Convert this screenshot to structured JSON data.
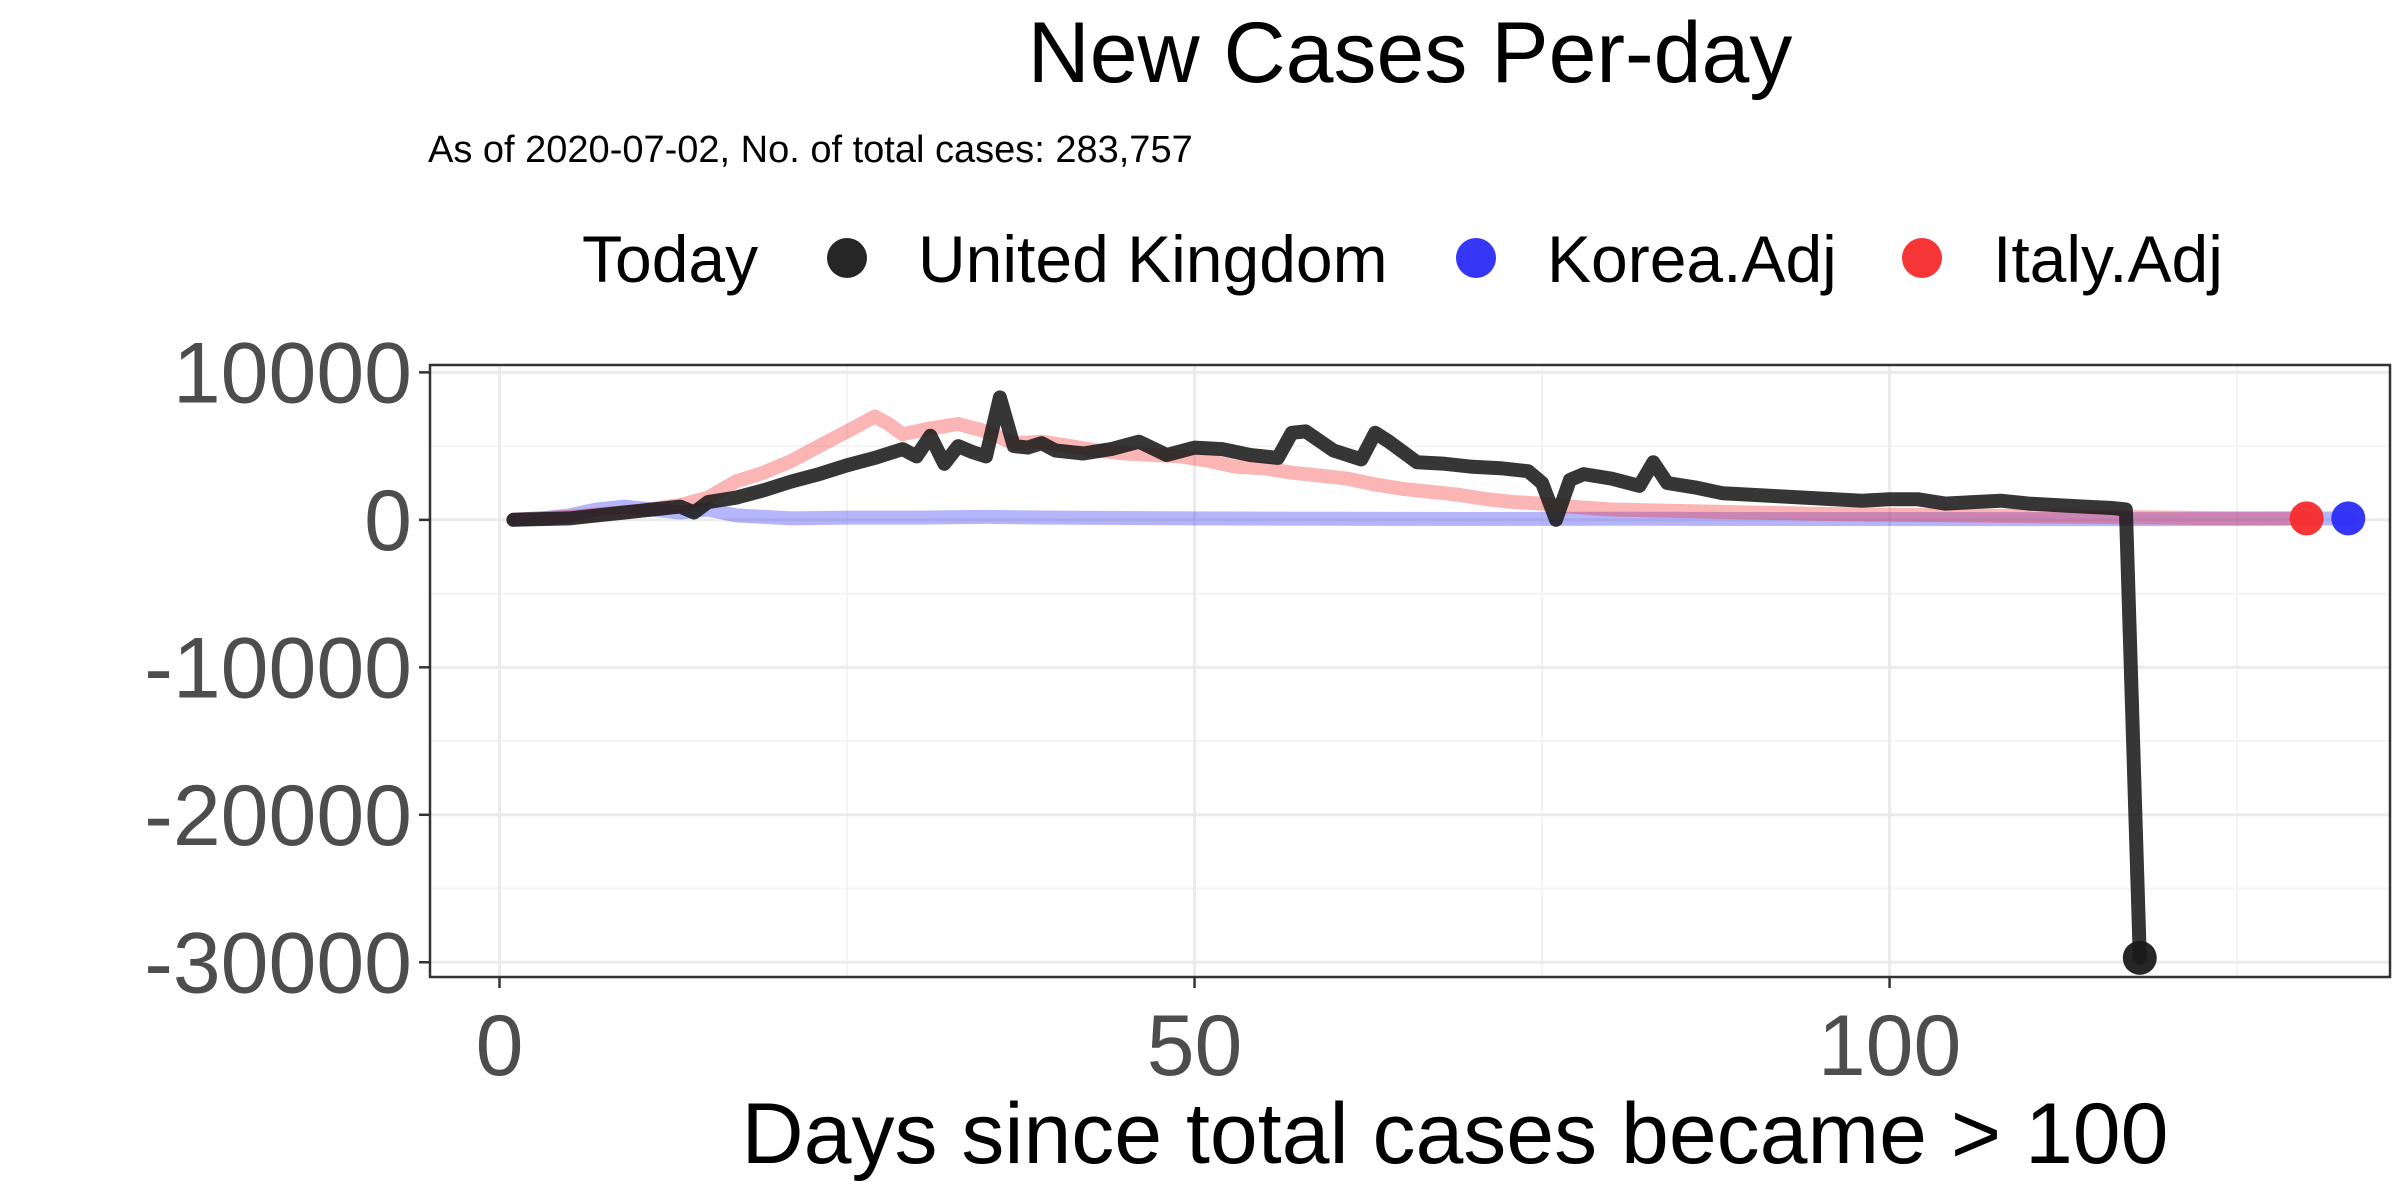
{
  "chart_data": {
    "type": "line",
    "title": "New Cases Per-day",
    "subtitle": "As of 2020-07-02, No. of total cases: 283,757",
    "xlabel": "Days since total cases became > 100",
    "ylabel": "",
    "xlim": [
      -5,
      136
    ],
    "ylim": [
      -31000,
      10500
    ],
    "x_ticks": [
      0,
      50,
      100
    ],
    "x_tick_labels": [
      "0",
      "50",
      "100"
    ],
    "y_ticks": [
      10000,
      0,
      -10000,
      -20000,
      -30000
    ],
    "y_tick_labels": [
      "10000",
      "0",
      "-10000",
      "-20000",
      "-30000"
    ],
    "grid": true,
    "legend": {
      "placement": "top",
      "title": "Today",
      "entries": [
        {
          "label": "United Kingdom",
          "color": "#1a1a1a"
        },
        {
          "label": "Korea.Adj",
          "color": "#2b2bf5"
        },
        {
          "label": "Italy.Adj",
          "color": "#f52b2b"
        }
      ]
    },
    "series": [
      {
        "name": "Korea.Adj",
        "color": "#2b2bf5",
        "line_opacity": 0.35,
        "x": [
          1,
          3,
          5,
          7,
          9,
          11,
          13,
          15,
          17,
          19,
          21,
          25,
          30,
          35,
          40,
          50,
          60,
          70,
          80,
          90,
          100,
          110,
          120,
          133
        ],
        "y": [
          0,
          100,
          300,
          700,
          900,
          700,
          500,
          700,
          300,
          200,
          100,
          150,
          150,
          200,
          150,
          100,
          80,
          60,
          80,
          60,
          60,
          50,
          50,
          100
        ],
        "today": {
          "x": 133,
          "y": 100
        }
      },
      {
        "name": "Italy.Adj",
        "color": "#f52b2b",
        "line_opacity": 0.35,
        "x": [
          1,
          5,
          10,
          13,
          15,
          17,
          19,
          21,
          23,
          25,
          27,
          28,
          29,
          31,
          33,
          35,
          37,
          39,
          41,
          43,
          45,
          47,
          49,
          51,
          53,
          55,
          57,
          59,
          61,
          63,
          65,
          67,
          69,
          71,
          73,
          75,
          77,
          80,
          85,
          90,
          95,
          100,
          105,
          110,
          115,
          120,
          125,
          130
        ],
        "y": [
          0,
          200,
          600,
          1000,
          1500,
          2600,
          3200,
          4000,
          5000,
          6000,
          7000,
          6500,
          5800,
          6200,
          6500,
          6000,
          5200,
          5300,
          5000,
          4700,
          4500,
          4400,
          4300,
          4000,
          3600,
          3500,
          3200,
          3000,
          2800,
          2400,
          2100,
          1900,
          1700,
          1400,
          1200,
          1100,
          900,
          700,
          600,
          500,
          400,
          350,
          300,
          250,
          200,
          150,
          100,
          100
        ],
        "today": {
          "x": 130,
          "y": 100
        }
      },
      {
        "name": "United Kingdom",
        "color": "#1a1a1a",
        "line_opacity": 0.88,
        "x": [
          1,
          5,
          7,
          9,
          11,
          13,
          14,
          15,
          17,
          19,
          21,
          23,
          25,
          27,
          29,
          30,
          31,
          32,
          33,
          34,
          35,
          36,
          37,
          38,
          39,
          40,
          42,
          44,
          46,
          48,
          50,
          52,
          54,
          56,
          57,
          58,
          60,
          62,
          63,
          64,
          66,
          68,
          70,
          72,
          74,
          75,
          76,
          77,
          78,
          80,
          82,
          83,
          84,
          86,
          88,
          90,
          92,
          94,
          96,
          98,
          100,
          102,
          104,
          106,
          108,
          110,
          112,
          114,
          116,
          117,
          118
        ],
        "y": [
          0,
          100,
          300,
          500,
          700,
          900,
          500,
          1200,
          1500,
          2000,
          2600,
          3100,
          3700,
          4200,
          4800,
          4300,
          5700,
          3800,
          5000,
          4600,
          4300,
          8300,
          5000,
          4900,
          5200,
          4700,
          4500,
          4800,
          5300,
          4400,
          4900,
          4800,
          4400,
          4200,
          5900,
          6000,
          4700,
          4100,
          5900,
          5300,
          3900,
          3800,
          3600,
          3500,
          3300,
          2500,
          0,
          2700,
          3100,
          2800,
          2300,
          3900,
          2500,
          2200,
          1800,
          1700,
          1600,
          1500,
          1400,
          1300,
          1400,
          1400,
          1100,
          1200,
          1300,
          1100,
          1000,
          900,
          800,
          700,
          -29700
        ],
        "today": {
          "x": 118,
          "y": -29700
        }
      }
    ]
  }
}
